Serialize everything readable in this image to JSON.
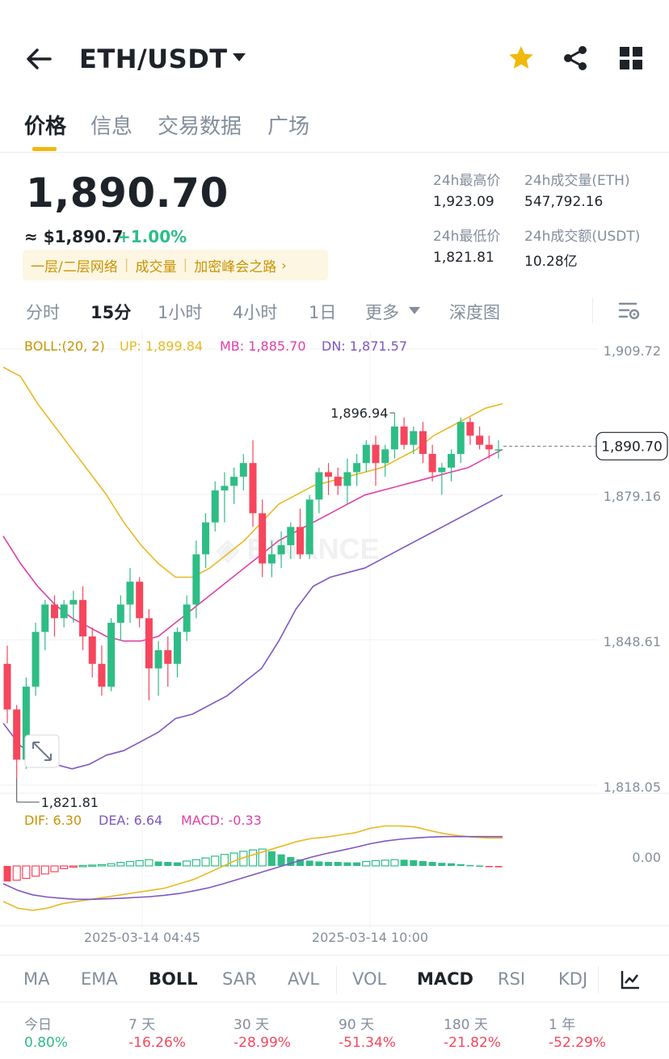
{
  "header": {
    "title": "ETH/USDT",
    "icons": [
      "back-arrow-icon",
      "star-icon",
      "share-icon",
      "grid-icon"
    ],
    "star_color": "#f0b90b"
  },
  "tabs": [
    {
      "label": "价格",
      "active": true
    },
    {
      "label": "信息",
      "active": false
    },
    {
      "label": "交易数据",
      "active": false
    },
    {
      "label": "广场",
      "active": false
    }
  ],
  "price": {
    "last": "1,890.70",
    "usd": "≈ $1,890.7",
    "change": "+1.00%",
    "tags": [
      "一层/二层网络",
      "成交量",
      "加密峰会之路"
    ]
  },
  "stats": {
    "high_label": "24h最高价",
    "high": "1,923.09",
    "vol_eth_label": "24h成交量(ETH)",
    "vol_eth": "547,792.16",
    "low_label": "24h最低价",
    "low": "1,821.81",
    "vol_usdt_label": "24h成交额(USDT)",
    "vol_usdt": "10.28亿"
  },
  "intervals": [
    {
      "label": "分时",
      "active": false
    },
    {
      "label": "15分",
      "active": true
    },
    {
      "label": "1小时",
      "active": false
    },
    {
      "label": "4小时",
      "active": false
    },
    {
      "label": "1日",
      "active": false
    },
    {
      "label": "更多",
      "active": false
    },
    {
      "label": "深度图",
      "active": false
    }
  ],
  "chart_data": {
    "type": "candlestick",
    "boll": {
      "label": "BOLL:(20, 2)",
      "up": "UP: 1,899.84",
      "mb": "MB: 1,885.70",
      "dn": "DN: 1,871.57"
    },
    "y_ticks": [
      "1,909.72",
      "1,879.16",
      "1,848.61",
      "1,818.05"
    ],
    "ylim": [
      1815,
      1912
    ],
    "last_price_label": "1,890.70",
    "last_price": 1890.7,
    "high_marker": "1,896.94",
    "low_marker": "1,821.81",
    "x_labels": [
      "2025-03-14 04:45",
      "2025-03-14 10:00"
    ],
    "candles": [
      [
        1843,
        1847,
        1830,
        1833
      ],
      [
        1833,
        1834,
        1818,
        1822
      ],
      [
        1822,
        1840,
        1820,
        1838
      ],
      [
        1838,
        1852,
        1836,
        1850
      ],
      [
        1850,
        1857,
        1846,
        1856
      ],
      [
        1856,
        1858,
        1849,
        1853
      ],
      [
        1853,
        1857,
        1851,
        1856
      ],
      [
        1856,
        1859,
        1852,
        1857
      ],
      [
        1857,
        1860,
        1846,
        1849
      ],
      [
        1849,
        1851,
        1840,
        1843
      ],
      [
        1843,
        1847,
        1836,
        1838
      ],
      [
        1838,
        1853,
        1837,
        1852
      ],
      [
        1852,
        1858,
        1848,
        1856
      ],
      [
        1856,
        1864,
        1852,
        1861
      ],
      [
        1861,
        1862,
        1851,
        1853
      ],
      [
        1853,
        1855,
        1835,
        1842
      ],
      [
        1842,
        1848,
        1836,
        1846
      ],
      [
        1846,
        1849,
        1838,
        1843
      ],
      [
        1843,
        1851,
        1840,
        1850
      ],
      [
        1850,
        1858,
        1848,
        1856
      ],
      [
        1856,
        1870,
        1853,
        1867
      ],
      [
        1867,
        1876,
        1864,
        1874
      ],
      [
        1874,
        1883,
        1872,
        1881
      ],
      [
        1881,
        1885,
        1874,
        1882
      ],
      [
        1882,
        1886,
        1878,
        1884
      ],
      [
        1884,
        1889,
        1881,
        1887
      ],
      [
        1887,
        1892,
        1873,
        1876
      ],
      [
        1876,
        1879,
        1862,
        1865
      ],
      [
        1865,
        1870,
        1862,
        1867
      ],
      [
        1867,
        1872,
        1864,
        1869
      ],
      [
        1869,
        1874,
        1866,
        1873
      ],
      [
        1873,
        1877,
        1866,
        1867
      ],
      [
        1867,
        1880,
        1866,
        1879
      ],
      [
        1879,
        1886,
        1876,
        1885
      ],
      [
        1885,
        1887,
        1880,
        1884
      ],
      [
        1884,
        1886,
        1880,
        1882
      ],
      [
        1882,
        1888,
        1878,
        1885
      ],
      [
        1885,
        1889,
        1882,
        1887
      ],
      [
        1887,
        1892,
        1885,
        1891
      ],
      [
        1891,
        1893,
        1882,
        1887
      ],
      [
        1887,
        1891,
        1884,
        1890
      ],
      [
        1890,
        1898,
        1888,
        1895
      ],
      [
        1895,
        1897,
        1890,
        1891
      ],
      [
        1891,
        1895,
        1889,
        1894
      ],
      [
        1894,
        1896,
        1887,
        1889
      ],
      [
        1889,
        1891,
        1883,
        1885
      ],
      [
        1885,
        1887,
        1880,
        1886
      ],
      [
        1886,
        1890,
        1883,
        1889
      ],
      [
        1889,
        1897,
        1887,
        1896
      ],
      [
        1896,
        1897,
        1891,
        1893
      ],
      [
        1893,
        1895,
        1890,
        1891
      ],
      [
        1891,
        1893,
        1888,
        1890
      ],
      [
        1890,
        1892,
        1888,
        1890
      ]
    ],
    "boll_up": [
      1908,
      1906,
      1900,
      1895,
      1890,
      1885,
      1880,
      1874,
      1869,
      1865,
      1862,
      1862,
      1864,
      1867,
      1870,
      1874,
      1878,
      1880,
      1882,
      1883,
      1884,
      1885,
      1886,
      1888,
      1890,
      1893,
      1895,
      1897,
      1899,
      1900
    ],
    "boll_mb": [
      1871,
      1865,
      1860,
      1856,
      1853,
      1851,
      1849,
      1848,
      1848,
      1849,
      1852,
      1855,
      1858,
      1861,
      1864,
      1867,
      1870,
      1872,
      1874,
      1876,
      1878,
      1880,
      1881,
      1882,
      1883,
      1884,
      1885,
      1886,
      1888,
      1890
    ],
    "boll_dn": [
      1830,
      1825,
      1823,
      1821,
      1820,
      1821,
      1823,
      1824,
      1826,
      1828,
      1831,
      1832,
      1834,
      1836,
      1839,
      1842,
      1848,
      1855,
      1860,
      1862,
      1863,
      1864,
      1866,
      1868,
      1870,
      1872,
      1874,
      1876,
      1878,
      1880
    ],
    "macd_labels": {
      "dif": "DIF: 6.30",
      "dea": "DEA: 6.64",
      "macd": "MACD: -0.33"
    },
    "macd_zero_label": "0.00",
    "macd_hist": [
      -3.5,
      -3.2,
      -2.8,
      -2.3,
      -1.8,
      -1.3,
      -0.6,
      -0.2,
      0.1,
      0.2,
      0.3,
      0.5,
      0.8,
      1.0,
      1.2,
      1.4,
      1.0,
      0.9,
      0.8,
      1.1,
      1.4,
      1.8,
      2.2,
      2.6,
      2.9,
      3.3,
      3.6,
      3.8,
      3.3,
      2.6,
      2.0,
      1.5,
      1.2,
      1.0,
      0.9,
      0.9,
      0.8,
      0.8,
      1.0,
      1.2,
      1.3,
      1.4,
      1.4,
      1.3,
      1.1,
      0.9,
      0.7,
      0.6,
      0.4,
      0.2,
      0.1,
      -0.1,
      -0.3
    ],
    "macd_dif": [
      -8,
      -9.5,
      -10,
      -9.5,
      -8.5,
      -8,
      -7.5,
      -7,
      -6.5,
      -6,
      -5.5,
      -5,
      -4,
      -3,
      -1.5,
      0,
      1.5,
      2.5,
      3.5,
      4.5,
      5.5,
      6.2,
      6.5,
      7,
      7.5,
      8.5,
      9,
      9,
      8.8,
      8,
      7.3,
      6.8,
      6.5,
      6.3,
      6.3
    ],
    "macd_dea": [
      -4,
      -5.5,
      -6.5,
      -7,
      -7.3,
      -7.5,
      -7.5,
      -7.4,
      -7.3,
      -7.1,
      -6.9,
      -6.6,
      -6.2,
      -5.6,
      -4.9,
      -4,
      -3,
      -2,
      -1,
      0,
      1,
      2,
      2.8,
      3.5,
      4.2,
      5,
      5.6,
      6,
      6.3,
      6.5,
      6.6,
      6.6,
      6.6,
      6.6,
      6.6
    ]
  },
  "indicators": {
    "main": [
      {
        "label": "MA"
      },
      {
        "label": "EMA"
      },
      {
        "label": "BOLL",
        "active": true
      },
      {
        "label": "SAR"
      },
      {
        "label": "AVL"
      }
    ],
    "sub": [
      {
        "label": "VOL"
      },
      {
        "label": "MACD",
        "active": true
      },
      {
        "label": "RSI"
      },
      {
        "label": "KDJ"
      }
    ]
  },
  "performance": [
    {
      "label": "今日",
      "value": "0.80%",
      "up": true
    },
    {
      "label": "7 天",
      "value": "-16.26%",
      "up": false
    },
    {
      "label": "30 天",
      "value": "-28.99%",
      "up": false
    },
    {
      "label": "90 天",
      "value": "-51.34%",
      "up": false
    },
    {
      "label": "180 天",
      "value": "-21.82%",
      "up": false
    },
    {
      "label": "1 年",
      "value": "-52.29%",
      "up": false
    }
  ],
  "colors": {
    "up": "#2ebd85",
    "down": "#f6465d",
    "accent": "#f0b90b",
    "boll_up": "#e8b923",
    "boll_mb": "#e040a8",
    "boll_dn": "#7e57c2"
  }
}
